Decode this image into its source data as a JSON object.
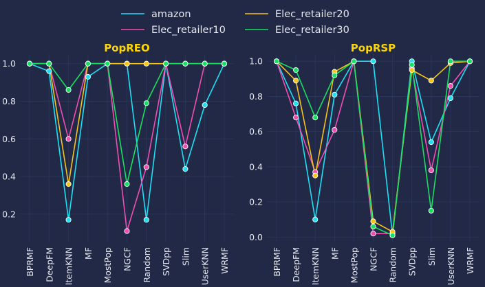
{
  "colors": {
    "background": "#212946",
    "grid": "#2A3459",
    "text": "#E6E8F0",
    "title": "#FFD700",
    "series": [
      "#1EE0F5",
      "#F04FB2",
      "#F5C518",
      "#18E060"
    ]
  },
  "legend": {
    "placement": "top-center",
    "items": [
      "amazon",
      "Elec_retailer10",
      "Elec_retailer20",
      "Elec_retailer30"
    ]
  },
  "chart_data": [
    {
      "type": "line",
      "title": "PopREO",
      "xlabel": "",
      "ylabel": "",
      "grid": true,
      "categories": [
        "BPRMF",
        "DeepFM",
        "ItemKNN",
        "MF",
        "MostPop",
        "NGCF",
        "Random",
        "SVDpp",
        "Slim",
        "UserKNN",
        "WRMF"
      ],
      "ylim": [
        0.05,
        1.05
      ],
      "yticks": [
        0.2,
        0.4,
        0.6,
        0.8,
        1.0
      ],
      "ytick_labels": [
        "0.2",
        "0.4",
        "0.6",
        "0.8",
        "1.0"
      ],
      "series": [
        {
          "name": "amazon",
          "values": [
            1.0,
            0.96,
            0.17,
            0.93,
            1.0,
            1.0,
            0.17,
            1.0,
            0.44,
            0.78,
            1.0
          ]
        },
        {
          "name": "Elec_retailer10",
          "values": [
            1.0,
            1.0,
            0.6,
            1.0,
            1.0,
            0.11,
            0.45,
            1.0,
            0.56,
            1.0,
            1.0
          ]
        },
        {
          "name": "Elec_retailer20",
          "values": [
            1.0,
            1.0,
            0.36,
            1.0,
            1.0,
            1.0,
            1.0,
            1.0,
            1.0,
            1.0,
            1.0
          ]
        },
        {
          "name": "Elec_retailer30",
          "values": [
            1.0,
            1.0,
            0.86,
            1.0,
            1.0,
            0.36,
            0.79,
            1.0,
            1.0,
            1.0,
            1.0
          ]
        }
      ]
    },
    {
      "type": "line",
      "title": "PopRSP",
      "xlabel": "",
      "ylabel": "",
      "grid": true,
      "categories": [
        "BPRMF",
        "DeepFM",
        "ItemKNN",
        "MF",
        "MostPop",
        "NGCF",
        "Random",
        "SVDpp",
        "Slim",
        "UserKNN",
        "WRMF"
      ],
      "ylim": [
        -0.03,
        1.04
      ],
      "yticks": [
        0.0,
        0.2,
        0.4,
        0.6,
        0.8,
        1.0
      ],
      "ytick_labels": [
        "0.0",
        "0.2",
        "0.4",
        "0.6",
        "0.8",
        "1.0"
      ],
      "series": [
        {
          "name": "amazon",
          "values": [
            1.0,
            0.76,
            0.1,
            0.81,
            1.0,
            1.0,
            0.01,
            1.0,
            0.54,
            0.79,
            1.0
          ]
        },
        {
          "name": "Elec_retailer10",
          "values": [
            1.0,
            0.68,
            0.37,
            0.61,
            1.0,
            0.02,
            0.02,
            0.96,
            0.38,
            0.86,
            1.0
          ]
        },
        {
          "name": "Elec_retailer20",
          "values": [
            1.0,
            0.89,
            0.35,
            0.94,
            1.0,
            0.09,
            0.03,
            0.95,
            0.89,
            0.99,
            1.0
          ]
        },
        {
          "name": "Elec_retailer30",
          "values": [
            1.0,
            0.95,
            0.68,
            0.92,
            1.0,
            0.06,
            0.01,
            0.98,
            0.15,
            1.0,
            1.0
          ]
        }
      ]
    }
  ]
}
